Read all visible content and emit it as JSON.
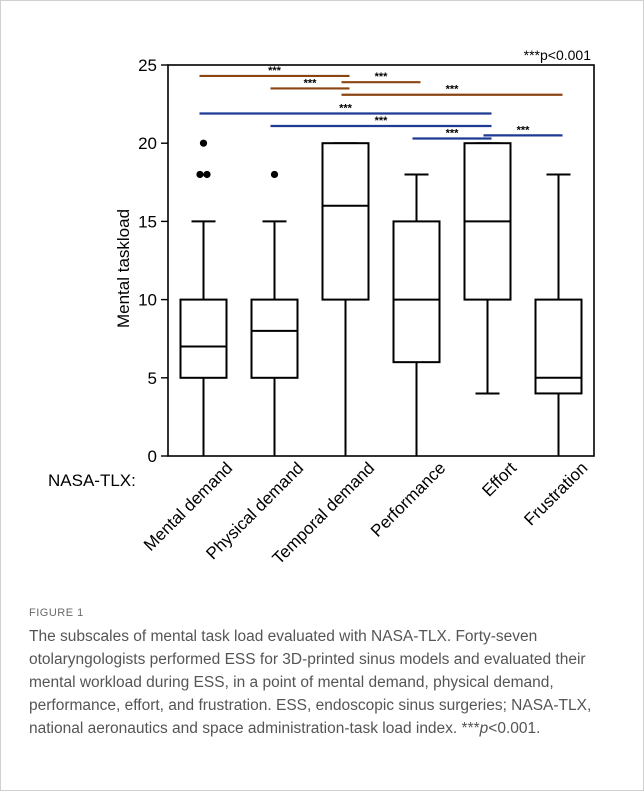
{
  "chart_data": {
    "type": "box",
    "ylabel": "Mental taskload",
    "xlabel_prefix": "NASA-TLX:",
    "ylim": [
      0,
      25
    ],
    "yticks": [
      0,
      5,
      10,
      15,
      20,
      25
    ],
    "significance_note": "***p<0.001",
    "categories": [
      "Mental demand",
      "Physical demand",
      "Temporal demand",
      "Performance",
      "Effort",
      "Frustration"
    ],
    "boxes": [
      {
        "category": "Mental demand",
        "min": 0,
        "q1": 5,
        "median": 7,
        "q3": 10,
        "max": 15,
        "outliers": [
          18,
          18,
          20
        ]
      },
      {
        "category": "Physical demand",
        "min": 0,
        "q1": 5,
        "median": 8,
        "q3": 10,
        "max": 15,
        "outliers": [
          18
        ]
      },
      {
        "category": "Temporal demand",
        "min": 0,
        "q1": 10,
        "median": 16,
        "q3": 20,
        "max": 20,
        "outliers": []
      },
      {
        "category": "Performance",
        "min": 0,
        "q1": 6,
        "median": 10,
        "q3": 15,
        "max": 18,
        "outliers": []
      },
      {
        "category": "Effort",
        "min": 4,
        "q1": 10,
        "median": 15,
        "q3": 20,
        "max": 20,
        "outliers": []
      },
      {
        "category": "Frustration",
        "min": 0,
        "q1": 4,
        "median": 5,
        "q3": 10,
        "max": 18,
        "outliers": []
      }
    ],
    "significance_bars": [
      {
        "from": "Mental demand",
        "to": "Temporal demand",
        "y": 24.3,
        "label": "***",
        "color": "#8B4513"
      },
      {
        "from": "Physical demand",
        "to": "Temporal demand",
        "y": 23.5,
        "label": "***",
        "color": "#8B4513"
      },
      {
        "from": "Temporal demand",
        "to": "Performance",
        "y": 23.9,
        "label": "***",
        "color": "#8B4513"
      },
      {
        "from": "Temporal demand",
        "to": "Frustration",
        "y": 23.1,
        "label": "***",
        "color": "#8B4513"
      },
      {
        "from": "Mental demand",
        "to": "Effort",
        "y": 21.9,
        "label": "***",
        "color": "#1f3a93"
      },
      {
        "from": "Physical demand",
        "to": "Effort",
        "y": 21.1,
        "label": "***",
        "color": "#1f3a93"
      },
      {
        "from": "Performance",
        "to": "Effort",
        "y": 20.3,
        "label": "***",
        "color": "#1f3a93"
      },
      {
        "from": "Effort",
        "to": "Frustration",
        "y": 20.5,
        "label": "***",
        "color": "#1f3a93"
      }
    ]
  },
  "caption": {
    "label": "FIGURE 1",
    "text_before_p": "The subscales of mental task load evaluated with NASA-TLX. Forty-seven otolaryngologists performed ESS for 3D-printed sinus models and evaluated their mental workload during ESS, in a point of mental demand, physical demand, performance, effort, and frustration. ESS, endoscopic sinus surgeries; NASA-TLX, national aeronautics and space administration-task load index. ***",
    "p_symbol": "p",
    "text_after_p": "<0.001."
  }
}
